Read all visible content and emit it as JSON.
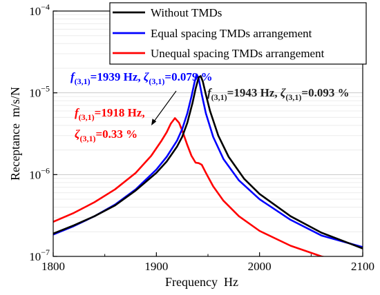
{
  "chart_data": {
    "type": "line",
    "xlabel": "Frequency  Hz",
    "ylabel": "Receptance  m/s/N",
    "xlim": [
      1800,
      2100
    ],
    "ylim": [
      1e-07,
      0.0001
    ],
    "yscale": "log",
    "grid": true,
    "legend_position": "top-right",
    "x_ticks": [
      1800,
      1900,
      2000,
      2100
    ],
    "x_tick_labels": [
      "1800",
      "1900",
      "2000",
      "2100"
    ],
    "y_ticks": [
      1e-07,
      1e-06,
      1e-05,
      0.0001
    ],
    "y_tick_labels": [
      {
        "base": "10",
        "exp": "−7"
      },
      {
        "base": "10",
        "exp": "−6"
      },
      {
        "base": "10",
        "exp": "−5"
      },
      {
        "base": "10",
        "exp": "−4"
      }
    ],
    "series": [
      {
        "name": "Without TMDs",
        "color": "#000000",
        "x": [
          1800,
          1820,
          1840,
          1860,
          1880,
          1900,
          1910,
          1920,
          1925,
          1930,
          1935,
          1938,
          1941,
          1943,
          1945,
          1948,
          1952,
          1960,
          1970,
          1985,
          2000,
          2030,
          2060,
          2100
        ],
        "y": [
          1.9e-07,
          2.4e-07,
          3.1e-07,
          4.2e-07,
          6.4e-07,
          1.05e-06,
          1.45e-06,
          2.2e-06,
          2.9e-06,
          4.3e-06,
          7.5e-06,
          1.12e-05,
          1.55e-05,
          1.6e-05,
          1.38e-05,
          9.5e-06,
          6e-06,
          3e-06,
          1.65e-06,
          8.9e-07,
          5.8e-07,
          3.1e-07,
          1.95e-07,
          1.25e-07
        ]
      },
      {
        "name": "Equal spacing TMDs arrangement",
        "color": "#0000ff",
        "x": [
          1800,
          1820,
          1840,
          1860,
          1880,
          1900,
          1910,
          1920,
          1925,
          1930,
          1934,
          1937,
          1939,
          1941,
          1944,
          1948,
          1955,
          1965,
          1980,
          2000,
          2030,
          2060,
          2100
        ],
        "y": [
          1.85e-07,
          2.35e-07,
          3.1e-07,
          4.3e-07,
          6.6e-07,
          1.15e-06,
          1.65e-06,
          2.6e-06,
          3.6e-06,
          5.6e-06,
          9e-06,
          1.35e-05,
          1.68e-05,
          1.5e-05,
          9.6e-06,
          5.6e-06,
          2.9e-06,
          1.55e-06,
          8.5e-07,
          5e-07,
          2.8e-07,
          1.8e-07,
          1.3e-07
        ]
      },
      {
        "name": "Unequal spacing TMDs arrangement",
        "color": "#ff0000",
        "x": [
          1800,
          1820,
          1840,
          1860,
          1880,
          1895,
          1905,
          1910,
          1914,
          1918,
          1922,
          1926,
          1930,
          1934,
          1938,
          1941,
          1944,
          1948,
          1955,
          1965,
          1980,
          2000,
          2030,
          2060,
          2080
        ],
        "y": [
          2.65e-07,
          3.4e-07,
          4.6e-07,
          6.6e-07,
          1.05e-06,
          1.7e-06,
          2.6e-06,
          3.3e-06,
          4.2e-06,
          4.9e-06,
          4.3e-06,
          3.2e-06,
          2.3e-06,
          1.7e-06,
          1.4e-06,
          1.38e-06,
          1.32e-06,
          1.05e-06,
          7.2e-07,
          4.8e-07,
          3.1e-07,
          2.05e-07,
          1.35e-07,
          1e-07,
          8.8e-08
        ]
      }
    ],
    "annotations": [
      {
        "f_value": "=1939 Hz, ",
        "zeta_value": "=0.079 %",
        "color": "#0000ff"
      },
      {
        "f_value": "=1943 Hz, ",
        "zeta_value": "=0.093 %",
        "color": "#222222"
      },
      {
        "f_value": "=1918 Hz,",
        "zeta_value": "=0.33 %",
        "color": "#ff0000"
      }
    ],
    "annotation_symbols": {
      "f": "f",
      "zeta": "ζ",
      "mode_subscript": "(3,1)"
    }
  }
}
